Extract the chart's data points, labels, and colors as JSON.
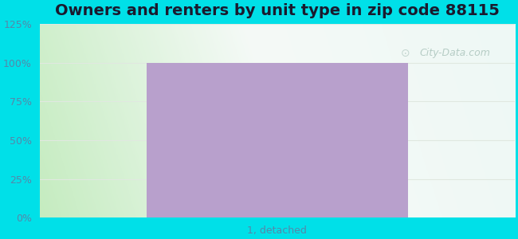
{
  "title": "Owners and renters by unit type in zip code 88115",
  "categories": [
    "1, detached"
  ],
  "values": [
    100
  ],
  "bar_color": "#b8a0cc",
  "bar_width": 0.55,
  "ylim": [
    0,
    125
  ],
  "yticks": [
    0,
    25,
    50,
    75,
    100,
    125
  ],
  "ytick_labels": [
    "0%",
    "25%",
    "50%",
    "75%",
    "100%",
    "125%"
  ],
  "background_outer": "#00e0e8",
  "title_fontsize": 14,
  "tick_fontsize": 9,
  "title_color": "#1a1a2e",
  "watermark_text": "City-Data.com",
  "watermark_color": "#b0c8c0",
  "grid_color": "#e0e8e0",
  "plot_bg_left": "#c8eec0",
  "plot_bg_right": "#f0f8f4"
}
